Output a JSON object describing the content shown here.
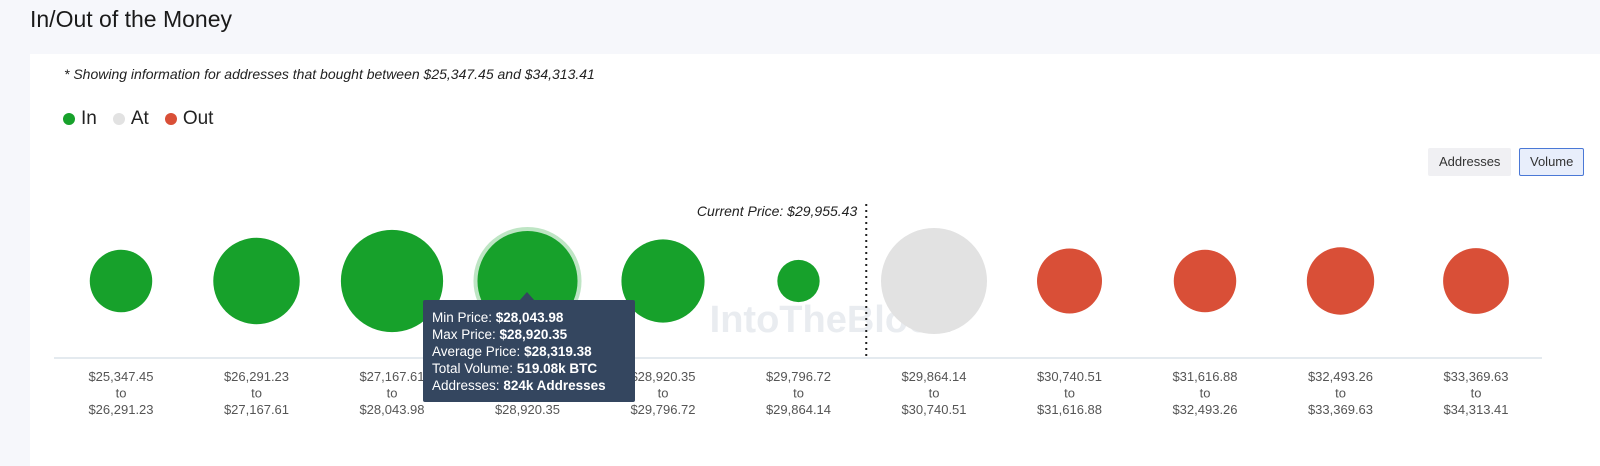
{
  "header": {
    "title": "In/Out of the Money"
  },
  "note": "* Showing information for addresses that bought between $25,347.45 and $34,313.41",
  "legend": [
    {
      "label": "In",
      "color": "#17a12b"
    },
    {
      "label": "At",
      "color": "#e2e2e2"
    },
    {
      "label": "Out",
      "color": "#d94f37"
    }
  ],
  "toggles": {
    "addresses": "Addresses",
    "volume": "Volume",
    "active": "Volume"
  },
  "chart_data": {
    "type": "bubble",
    "current_price_label": "Current Price: $29,955.43",
    "current_price": 29955.43,
    "watermark": "IntoTheBlock",
    "size_metric": "Volume",
    "categories": [
      {
        "from": "$25,347.45",
        "to": "$26,291.23",
        "status": "In",
        "size": 0.22
      },
      {
        "from": "$26,291.23",
        "to": "$27,167.61",
        "status": "In",
        "size": 0.58
      },
      {
        "from": "$27,167.61",
        "to": "$28,043.98",
        "status": "In",
        "size": 0.91
      },
      {
        "from": "$28,043.98",
        "to": "$28,920.35",
        "status": "In",
        "size": 0.86,
        "highlighted": true
      },
      {
        "from": "$28,920.35",
        "to": "$29,796.72",
        "status": "In",
        "size": 0.52
      },
      {
        "from": "$29,796.72",
        "to": "$29,864.14",
        "status": "In",
        "size": 0.05
      },
      {
        "from": "$29,864.14",
        "to": "$30,740.51",
        "status": "At",
        "size": 1.0
      },
      {
        "from": "$30,740.51",
        "to": "$31,616.88",
        "status": "Out",
        "size": 0.25
      },
      {
        "from": "$31,616.88",
        "to": "$32,493.26",
        "status": "Out",
        "size": 0.22
      },
      {
        "from": "$32,493.26",
        "to": "$33,369.63",
        "status": "Out",
        "size": 0.28
      },
      {
        "from": "$33,369.63",
        "to": "$34,313.41",
        "status": "Out",
        "size": 0.26
      }
    ],
    "to_word": "to",
    "tooltip": {
      "min_label": "Min Price:",
      "min_value": "$28,043.98",
      "max_label": "Max Price:",
      "max_value": "$28,920.35",
      "avg_label": "Average Price:",
      "avg_value": "$28,319.38",
      "vol_label": "Total Volume:",
      "vol_value": "519.08k BTC",
      "addr_label": "Addresses:",
      "addr_value": "824k Addresses"
    }
  }
}
